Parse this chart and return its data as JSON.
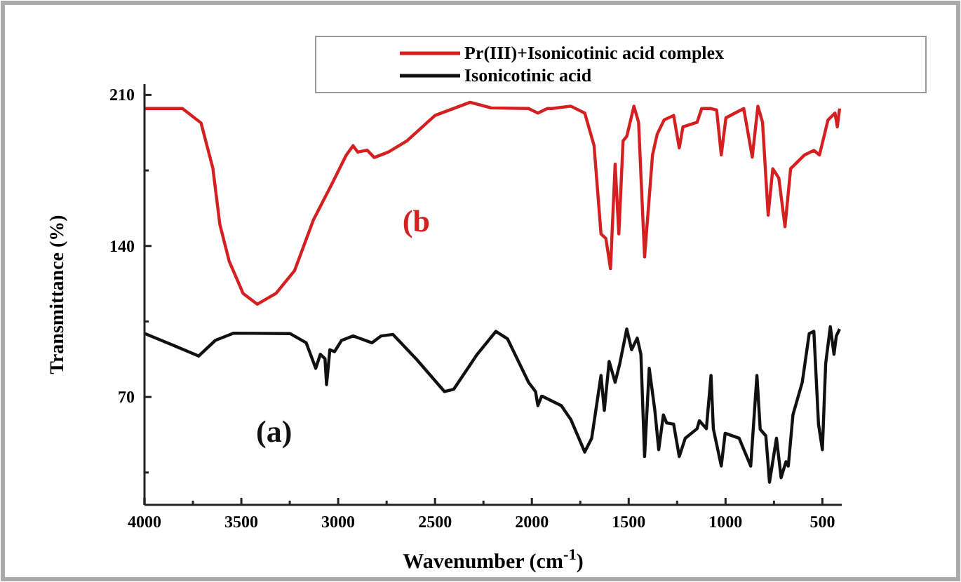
{
  "chart_data": {
    "type": "line",
    "xlabel": "Wavenumber (cm$^{-1}$)",
    "ylabel": "Transmittance (%)",
    "xlim": [
      4000,
      400
    ],
    "ylim": [
      20,
      215
    ],
    "xticks": [
      4000,
      {
        "value": 3750,
        "label": null
      },
      3500,
      {
        "value": 3250,
        "label": null
      },
      3000,
      {
        "value": 2750,
        "label": null
      },
      2500,
      {
        "value": 2250,
        "label": null
      },
      2000,
      {
        "value": 1750,
        "label": null
      },
      1500,
      {
        "value": 1250,
        "label": null
      },
      1000,
      {
        "value": 750,
        "label": null
      },
      500
    ],
    "yticks": [
      {
        "value": 35,
        "label": null
      },
      70,
      {
        "value": 105,
        "label": null
      },
      140,
      {
        "value": 175,
        "label": null
      },
      210
    ],
    "grid": false,
    "legend": "top right",
    "marker": "none",
    "line_style": "solid",
    "annotations": [
      "(b",
      "(a)"
    ],
    "series": [
      {
        "name": "Pr(III)+Isonicotinic acid complex",
        "color": "#d42020",
        "x": [
          3998,
          3804,
          3708,
          3647,
          3611,
          3563,
          3491,
          3418,
          3321,
          3225,
          3128,
          3031,
          2959,
          2923,
          2899,
          2850,
          2814,
          2741,
          2645,
          2500,
          2319,
          2210,
          2017,
          1969,
          1920,
          1896,
          1799,
          1727,
          1679,
          1643,
          1618,
          1594,
          1570,
          1551,
          1529,
          1510,
          1473,
          1449,
          1418,
          1377,
          1353,
          1317,
          1268,
          1239,
          1220,
          1147,
          1123,
          1075,
          1046,
          1022,
          998,
          906,
          862,
          833,
          809,
          780,
          756,
          725,
          693,
          664,
          592,
          544,
          515,
          471,
          435,
          423,
          411
        ],
        "values": [
          203.7,
          203.7,
          197,
          176,
          150,
          133,
          118,
          113,
          118,
          128.6,
          152,
          169,
          182,
          186.5,
          183.5,
          184.4,
          181,
          183.5,
          188.7,
          200.5,
          206.6,
          204,
          203.7,
          201.6,
          203.7,
          203.7,
          204.8,
          201.6,
          186.6,
          145.6,
          143.5,
          129.5,
          178,
          145.6,
          188.7,
          190.8,
          204.8,
          197.3,
          134.9,
          182.2,
          191.8,
          198.4,
          200.5,
          185.5,
          195.2,
          197.3,
          203.7,
          203.7,
          203,
          182.2,
          199.4,
          203.7,
          181.2,
          204.8,
          197.3,
          154.3,
          175.8,
          171.5,
          148.9,
          175.8,
          182.2,
          184.3,
          182.2,
          198.4,
          201.6,
          195.2,
          203.7
        ]
      },
      {
        "name": "Isonicotinic acid",
        "color": "#111111",
        "x": [
          3998,
          3853,
          3720,
          3635,
          3539,
          3249,
          3165,
          3116,
          3092,
          3068,
          3060,
          3043,
          3019,
          2983,
          2923,
          2826,
          2778,
          2717,
          2596,
          2451,
          2403,
          2283,
          2186,
          2126,
          2017,
          1981,
          1969,
          1950,
          1945,
          1848,
          1799,
          1727,
          1691,
          1643,
          1626,
          1601,
          1570,
          1546,
          1510,
          1485,
          1456,
          1437,
          1418,
          1394,
          1365,
          1345,
          1321,
          1304,
          1268,
          1239,
          1208,
          1147,
          1135,
          1099,
          1075,
          1063,
          1022,
          1002,
          930,
          870,
          838,
          821,
          792,
          773,
          737,
          713,
          688,
          676,
          652,
          604,
          568,
          544,
          520,
          500,
          483,
          459,
          440,
          428,
          411
        ],
        "values": [
          99.4,
          94,
          89,
          96.2,
          99.6,
          99.4,
          95.1,
          83.3,
          89.8,
          87.7,
          75.7,
          91.9,
          91,
          96.2,
          98.3,
          95.1,
          98.3,
          99,
          87.5,
          72.5,
          73.6,
          89.7,
          100.4,
          97,
          76.8,
          72.5,
          66,
          70.3,
          70.3,
          66,
          59.6,
          44.5,
          50.9,
          80,
          63.8,
          86.5,
          76.8,
          85.5,
          101.5,
          91.9,
          97.3,
          89.8,
          42.4,
          83.3,
          63.8,
          45.6,
          61.7,
          58,
          57.4,
          42.4,
          50.9,
          55.3,
          59,
          55.3,
          80,
          55.3,
          38,
          53.2,
          50.9,
          38,
          80,
          55,
          52,
          30.5,
          50.9,
          32.6,
          40,
          38,
          61.7,
          76.8,
          99.4,
          100.4,
          57.4,
          45.6,
          85.5,
          102.6,
          89.8,
          98.3,
          101.5
        ]
      }
    ]
  }
}
